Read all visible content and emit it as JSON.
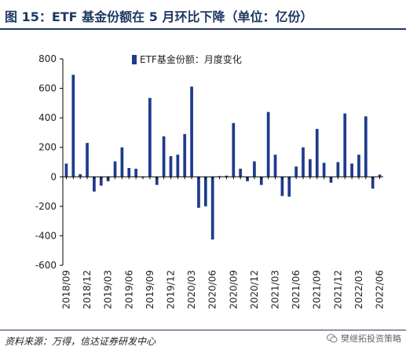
{
  "figure": {
    "title": "图 15：ETF 基金份额在 5 月环比下降（单位：亿份）",
    "source": "资料来源：万得，信达证券研发中心",
    "watermark": "樊继拓投资策略"
  },
  "colors": {
    "bar": "#1f3b8c",
    "axis": "#000000",
    "title": "#1f3864"
  },
  "chart_data": {
    "type": "bar",
    "title": "",
    "xlabel": "",
    "ylabel": "",
    "ylim": [
      -600,
      800
    ],
    "yticks": [
      -600,
      -400,
      -200,
      0,
      200,
      400,
      600,
      800
    ],
    "grid": false,
    "legend_position": "top-center",
    "categories": [
      "2018/09",
      "2018/10",
      "2018/11",
      "2018/12",
      "2019/01",
      "2019/02",
      "2019/03",
      "2019/04",
      "2019/05",
      "2019/06",
      "2019/07",
      "2019/08",
      "2019/09",
      "2019/10",
      "2019/11",
      "2019/12",
      "2020/01",
      "2020/02",
      "2020/03",
      "2020/04",
      "2020/05",
      "2020/06",
      "2020/07",
      "2020/08",
      "2020/09",
      "2020/10",
      "2020/11",
      "2020/12",
      "2021/01",
      "2021/02",
      "2021/03",
      "2021/04",
      "2021/05",
      "2021/06",
      "2021/07",
      "2021/08",
      "2021/09",
      "2021/10",
      "2021/11",
      "2021/12",
      "2022/01",
      "2022/02",
      "2022/03",
      "2022/04",
      "2022/05",
      "2022/06"
    ],
    "xtick_labels": [
      "2018/09",
      "2018/12",
      "2019/03",
      "2019/06",
      "2019/09",
      "2019/12",
      "2020/03",
      "2020/06",
      "2020/09",
      "2020/12",
      "2021/03",
      "2021/06",
      "2021/09",
      "2021/12",
      "2022/03",
      "2022/06"
    ],
    "series": [
      {
        "name": "ETF基金份额：月度变化",
        "values": [
          [
            90,
            692
          ],
          [
            18,
            230
          ],
          [
            -100,
            -60
          ],
          [
            -30,
            105
          ],
          [
            200,
            60
          ],
          [
            55,
            -5
          ],
          [
            535,
            -55
          ],
          [
            275,
            140
          ],
          [
            150,
            290
          ],
          [
            612,
            -210
          ],
          [
            -200,
            -425
          ],
          [
            5,
            8
          ],
          [
            365,
            55
          ],
          [
            -30,
            105
          ],
          [
            -55,
            440
          ],
          [
            150,
            -130
          ],
          [
            -135,
            70
          ],
          [
            200,
            120
          ],
          [
            325,
            95
          ],
          [
            -40,
            100
          ],
          [
            430,
            90
          ],
          [
            150,
            410
          ],
          [
            -80,
            15
          ]
        ]
      }
    ]
  }
}
